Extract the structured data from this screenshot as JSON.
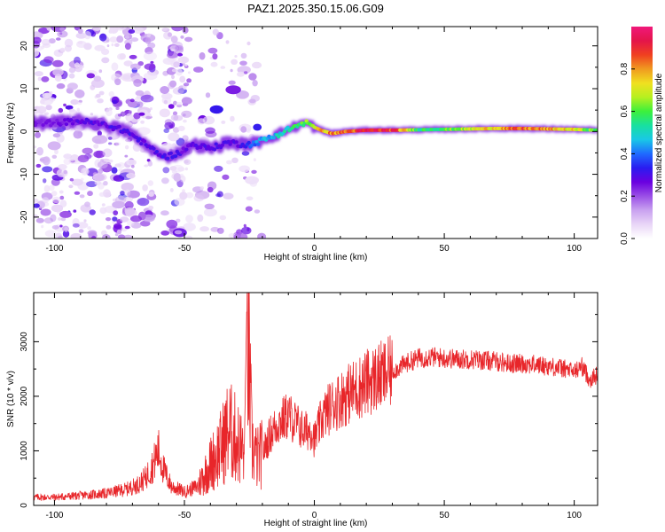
{
  "figure_title": "PAZ1.2025.350.15.06.G09",
  "colors": {
    "snr_line": "#e8262a",
    "axis": "#000000",
    "colormap": [
      "#ffffff",
      "#e9d6f7",
      "#c9a2f0",
      "#9a4fe6",
      "#6a00e0",
      "#2a1cf0",
      "#1f6bff",
      "#19c8e6",
      "#18e0a0",
      "#3cf03c",
      "#b6f020",
      "#f0e020",
      "#f09a20",
      "#f04020",
      "#e4154a",
      "#f0187a"
    ]
  },
  "chart_data": [
    {
      "type": "heatmap",
      "title": "PAZ1.2025.350.15.06.G09",
      "xlabel": "Height of straight line (km)",
      "ylabel": "Frequency (Hz)",
      "xlim": [
        -108,
        109
      ],
      "ylim": [
        -25,
        24.5
      ],
      "x_ticks": [
        -100,
        -50,
        0,
        50,
        100
      ],
      "y_ticks": [
        -20,
        -10,
        0,
        10,
        20
      ],
      "colorbar": {
        "label": "Normalized spectral amplitude",
        "range": [
          0,
          1
        ],
        "ticks": [
          0.0,
          0.2,
          0.4,
          0.6,
          0.8
        ]
      },
      "ridge": {
        "x": [
          -100,
          -90,
          -80,
          -72,
          -65,
          -58,
          -52,
          -47,
          -40,
          -33,
          -28,
          -24,
          -20,
          -15,
          -10,
          -6,
          -3,
          0,
          3,
          7,
          12,
          20,
          30,
          40,
          50,
          60,
          70,
          80,
          90,
          100,
          109
        ],
        "freq": [
          2,
          2.5,
          1.5,
          0,
          -3,
          -6,
          -5,
          -3,
          -4,
          -2.5,
          -3,
          -3,
          -2,
          -1,
          0.5,
          1.5,
          2,
          1,
          0.2,
          -0.5,
          0,
          0.3,
          0.3,
          0.4,
          0.5,
          0.6,
          0.7,
          0.7,
          0.6,
          0.5,
          0.3
        ],
        "amplitude": [
          0.25,
          0.3,
          0.3,
          0.32,
          0.3,
          0.32,
          0.3,
          0.28,
          0.32,
          0.3,
          0.3,
          0.4,
          0.45,
          0.5,
          0.55,
          0.6,
          0.65,
          0.75,
          0.8,
          0.85,
          0.88,
          0.95,
          0.95,
          0.6,
          0.62,
          0.72,
          0.82,
          0.88,
          0.82,
          0.75,
          0.6
        ]
      }
    },
    {
      "type": "line",
      "xlabel": "Height of straight line (km)",
      "ylabel": "SNR (10 * v/v)",
      "xlim": [
        -108,
        109
      ],
      "ylim": [
        0,
        3900
      ],
      "x_ticks": [
        -100,
        -50,
        0,
        50,
        100
      ],
      "y_ticks": [
        0,
        1000,
        2000,
        3000
      ],
      "series": [
        {
          "name": "SNR",
          "x": [
            -108,
            -100,
            -90,
            -80,
            -72,
            -68,
            -65,
            -62,
            -60,
            -58,
            -55,
            -50,
            -45,
            -40,
            -36,
            -33,
            -30,
            -27,
            -26,
            -24,
            -22,
            -20,
            -17,
            -14,
            -10,
            -7,
            -4,
            -1,
            0,
            3,
            6,
            10,
            15,
            20,
            25,
            30,
            35,
            40,
            45,
            50,
            55,
            60,
            65,
            70,
            75,
            80,
            85,
            90,
            95,
            100,
            103,
            106,
            109
          ],
          "values": [
            150,
            150,
            180,
            220,
            300,
            380,
            500,
            750,
            1000,
            650,
            350,
            250,
            350,
            750,
            1050,
            1400,
            1200,
            950,
            3650,
            1100,
            850,
            950,
            1300,
            1500,
            1650,
            1500,
            1350,
            1400,
            1200,
            1600,
            1800,
            1950,
            2100,
            2250,
            2350,
            2450,
            2600,
            2700,
            2720,
            2700,
            2680,
            2680,
            2660,
            2640,
            2600,
            2600,
            2580,
            2550,
            2520,
            2450,
            2550,
            2300,
            2400
          ]
        }
      ]
    }
  ]
}
